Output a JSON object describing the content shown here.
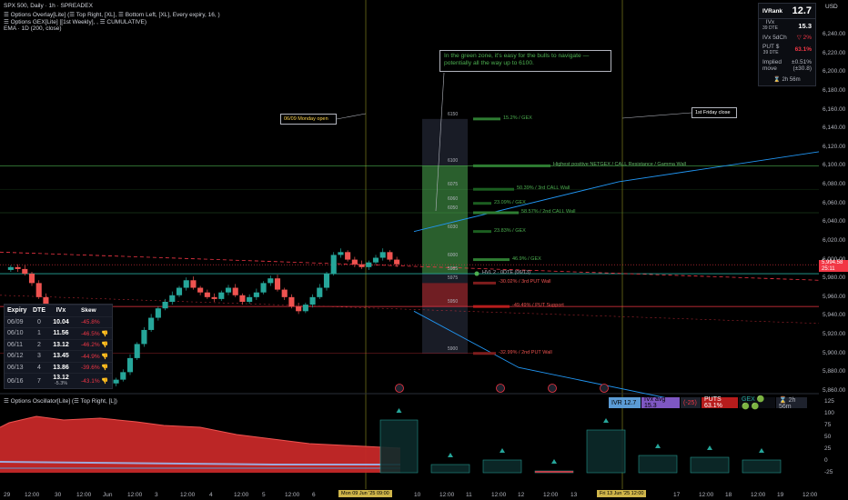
{
  "header": {
    "symbol": "SPX 500, Daily · 1h · SPREADEX",
    "line1": "☰ Options Overlay[Lite] (☰ Top Right, [XL], ☰ Bottom Left, [XL], Every expiry, 16, )",
    "line2": "☰ Options GEX[Lite] [[1st Weekly], , ☰ CUMULATIVE)",
    "line3": "EMA · 1D (200, close)"
  },
  "panel": {
    "ivrank_label": "IVRank",
    "ivrank_value": "12.7",
    "ivx_label": "IVx",
    "ivx_dte": "39 DTE",
    "ivx_value": "15.3",
    "ivx5d_label": "IVx 5dCh",
    "ivx5d_value": "▽ 2%",
    "put_label": "PUT $",
    "put_dte": "39 DTE",
    "put_value": "63.1%",
    "implied_label": "Implied move",
    "implied_value": "±0.51% (±30.8)",
    "timer": "⌛ 2h 56m"
  },
  "iv_table": {
    "headers": [
      "Expiry",
      "DTE",
      "IVx",
      "Skew"
    ],
    "rows": [
      {
        "expiry": "06/09",
        "dte": "0",
        "ivx": "10.04",
        "skew": "-45.8%"
      },
      {
        "expiry": "06/10",
        "dte": "1",
        "ivx": "11.56",
        "skew": "-46.5% 👎"
      },
      {
        "expiry": "06/11",
        "dte": "2",
        "ivx": "13.12",
        "skew": "-46.2% 👎"
      },
      {
        "expiry": "06/12",
        "dte": "3",
        "ivx": "13.45",
        "skew": "-44.9% 👎"
      },
      {
        "expiry": "06/13",
        "dte": "4",
        "ivx": "13.86",
        "skew": "-39.6% 👎"
      },
      {
        "expiry": "06/16",
        "dte": "7",
        "ivx": "13.12",
        "ivx_sub": "-5.3%",
        "skew": "-43.1% 👎"
      }
    ]
  },
  "annotations": {
    "green_zone": "In the green zone, it's easy for the bulls to navigate — potentially all the way up to 6100.",
    "monday_open": "06/09 Monday open",
    "first_friday": "1st Friday close"
  },
  "gex_levels": [
    {
      "strike": "6150",
      "label": "15.2% / GEX",
      "price": 6150,
      "len": 30,
      "color": "#2e7d32"
    },
    {
      "strike": "6100",
      "label": "Highest positive NETGEX / CALL Resistance / Gamma Wall",
      "price": 6100,
      "len": 85,
      "color": "#2e7d32"
    },
    {
      "strike": "6075",
      "label": "50.39% / 3rd CALL Wall",
      "price": 6075,
      "len": 45,
      "color": "#1b5e20"
    },
    {
      "strike": "6060",
      "label": "23.09% / GEX",
      "price": 6060,
      "len": 20,
      "color": "#1b5e20"
    },
    {
      "strike": "6050",
      "label": "58.57% / 2nd CALL Wall",
      "price": 6050,
      "len": 50,
      "color": "#2e7d32"
    },
    {
      "strike": "6030",
      "label": "23.83% / GEX",
      "price": 6030,
      "len": 20,
      "color": "#1b5e20"
    },
    {
      "strike": "6000",
      "label": "46.9% / GEX",
      "price": 6000,
      "len": 40,
      "color": "#2e7d32"
    },
    {
      "strike": "5985",
      "label": "HVL 2 · 0DTE (06/13)",
      "price": 5985,
      "len": 0,
      "color": "#26a69a"
    },
    {
      "strike": "5975",
      "label": "-30.02% / 3rd PUT Wall",
      "price": 5975,
      "len": 25,
      "color": "#7f1d1d"
    },
    {
      "strike": "5950",
      "label": "-49.49% / PUT Support",
      "price": 5950,
      "len": 40,
      "color": "#b71c1c"
    },
    {
      "strike": "5900",
      "label": "-32.99% / 2nd PUT Wall",
      "price": 5900,
      "len": 25,
      "color": "#7f1d1d"
    }
  ],
  "y_axis": {
    "labels": [
      "6,240.00",
      "6,220.00",
      "6,200.00",
      "6,180.00",
      "6,160.00",
      "6,140.00",
      "6,120.00",
      "6,100.00",
      "6,080.00",
      "6,060.00",
      "6,040.00",
      "6,020.00",
      "6,000.00",
      "5,980.00",
      "5,960.00",
      "5,940.00",
      "5,920.00",
      "5,900.00",
      "5,880.00",
      "5,860.00"
    ],
    "price_tag": "5,994.58",
    "price_tag2": "25:11",
    "currency": "USD"
  },
  "x_axis": {
    "labels": [
      "29",
      "12:00",
      "30",
      "12:00",
      "Jun",
      "12:00",
      "3",
      "12:00",
      "4",
      "12:00",
      "5",
      "12:00",
      "6",
      "10",
      "12:00",
      "11",
      "12:00",
      "12",
      "12:00",
      "13",
      "17",
      "12:00",
      "18",
      "12:00",
      "19",
      "12:00"
    ],
    "highlight1": "Mon 09 Jun '25 09:00",
    "highlight2": "Fri 13 Jun '25 12:00"
  },
  "oscillator": {
    "title": "☰ Options Oscillator[Lite] (☰ Top Right, [L])",
    "stats": [
      {
        "text": "IVR 12.7",
        "bg": "#5b9bd5",
        "fg": "#000"
      },
      {
        "text": "IVx avg 15.3",
        "bg": "#7e57c2",
        "fg": "#000"
      },
      {
        "text": "(-25)",
        "bg": "#1e222d",
        "fg": "#f23645"
      },
      {
        "text": "PUTS 63.1%",
        "bg": "#b71c1c",
        "fg": "#fff"
      },
      {
        "text": "GEX 🟢 🟢 🟢",
        "bg": "#0b0d12",
        "fg": "#26a69a"
      },
      {
        "text": "⌛ 2h 56m",
        "bg": "#1e222d",
        "fg": "#b2b5be"
      }
    ],
    "y_labels": [
      "125",
      "100",
      "75",
      "50",
      "25",
      "0",
      "-25"
    ]
  },
  "chart_data": {
    "type": "candlestick",
    "ylim": [
      5855,
      6250
    ],
    "current_price": 5994.58,
    "ema200": [
      [
        0,
        6010
      ],
      [
        440,
        5982
      ]
    ],
    "trend_upper": [
      [
        455,
        6030
      ],
      [
        680,
        6083
      ],
      [
        900,
        6115
      ]
    ],
    "trend_lower": [
      [
        455,
        5945
      ],
      [
        570,
        5885
      ],
      [
        745,
        5850
      ]
    ],
    "closes": [
      5992,
      5990,
      5985,
      5975,
      5960,
      5945,
      5932,
      5918,
      5905,
      5895,
      5888,
      5880,
      5875,
      5870,
      5868,
      5872,
      5880,
      5895,
      5910,
      5925,
      5938,
      5948,
      5955,
      5962,
      5970,
      5978,
      5970,
      5965,
      5960,
      5958,
      5965,
      5970,
      5962,
      5955,
      5960,
      5965,
      5975,
      5980,
      5968,
      5960,
      5950,
      5945,
      5952,
      5960,
      5970,
      5985,
      6005,
      6008,
      6000,
      5995,
      5992,
      5997,
      6002,
      6008,
      6000,
      5995
    ]
  }
}
